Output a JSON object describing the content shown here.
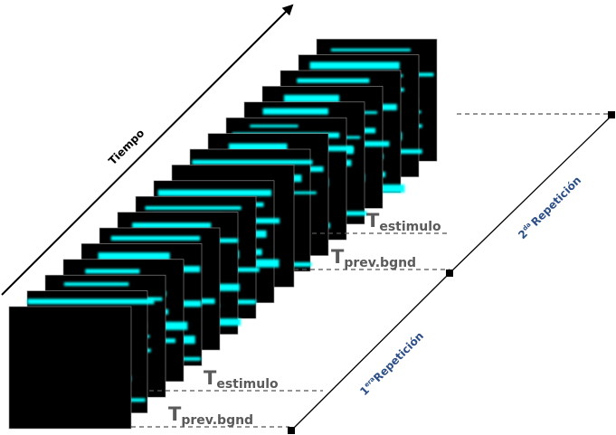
{
  "diagram": {
    "time_label": "Tiempo",
    "labels": {
      "t_estimulo_main": "T",
      "t_estimulo_sub": "estimulo",
      "t_prev_main": "T",
      "t_prev_sub": "prev.bgnd"
    },
    "repetitions": [
      {
        "number": "1",
        "superscript": "era",
        "word": "Repetición"
      },
      {
        "number": "2",
        "superscript": "da",
        "word": "Repetición"
      }
    ],
    "colors": {
      "frame": "#000000",
      "stripe": "#00ffff",
      "dashed_line": "#555555",
      "label_text": "#5a5a5a",
      "repetition_text": "#2b4e86",
      "axis": "#000000"
    }
  }
}
